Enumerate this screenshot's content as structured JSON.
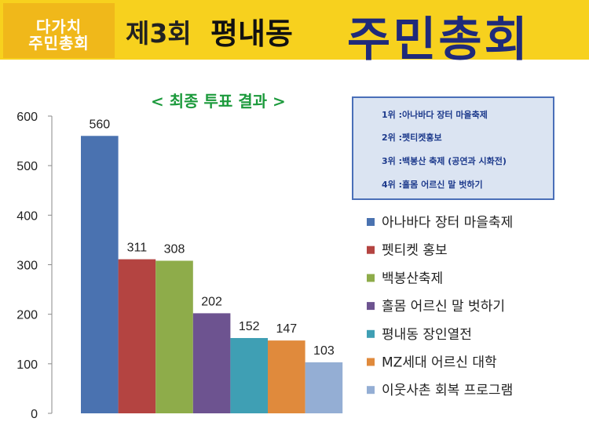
{
  "header": {
    "logo_line1": "다가치",
    "logo_line2": "주민총회",
    "session": "제3회",
    "place": "평내동",
    "event": "주민총회"
  },
  "chart_title": "< 최종 투표 결과 >",
  "ranking": [
    "1위 :아나바다 장터 마을축제",
    "2위 :펫티켓홍보",
    "3위 :백봉산 축제 (공연과 시화전)",
    "4위 :홀몸 어르신 말 벗하기"
  ],
  "colors": {
    "banner": "#f7d11e",
    "title": "#1c9a3c",
    "box_border": "#4a6fb8",
    "box_fill": "#dbe4f2"
  },
  "chart_data": {
    "type": "bar",
    "title": "< 최종 투표 결과 >",
    "xlabel": "",
    "ylabel": "",
    "ylim": [
      0,
      600
    ],
    "yticks": [
      0,
      100,
      200,
      300,
      400,
      500,
      600
    ],
    "grid": false,
    "legend_position": "right",
    "series": [
      {
        "name": "아나바다 장터 마을축제",
        "value": 560,
        "color": "#4a72b0"
      },
      {
        "name": "펫티켓 홍보",
        "value": 311,
        "color": "#b44441"
      },
      {
        "name": "백봉산축제",
        "value": 308,
        "color": "#8eac4a"
      },
      {
        "name": "홀몸 어르신 말 벗하기",
        "value": 202,
        "color": "#6d5390"
      },
      {
        "name": "평내동 장인열전",
        "value": 152,
        "color": "#3f9fb4"
      },
      {
        "name": "MZ세대 어르신 대학",
        "value": 147,
        "color": "#e08a3c"
      },
      {
        "name": "이웃사촌 회복 프로그램",
        "value": 103,
        "color": "#94aed4"
      }
    ]
  }
}
